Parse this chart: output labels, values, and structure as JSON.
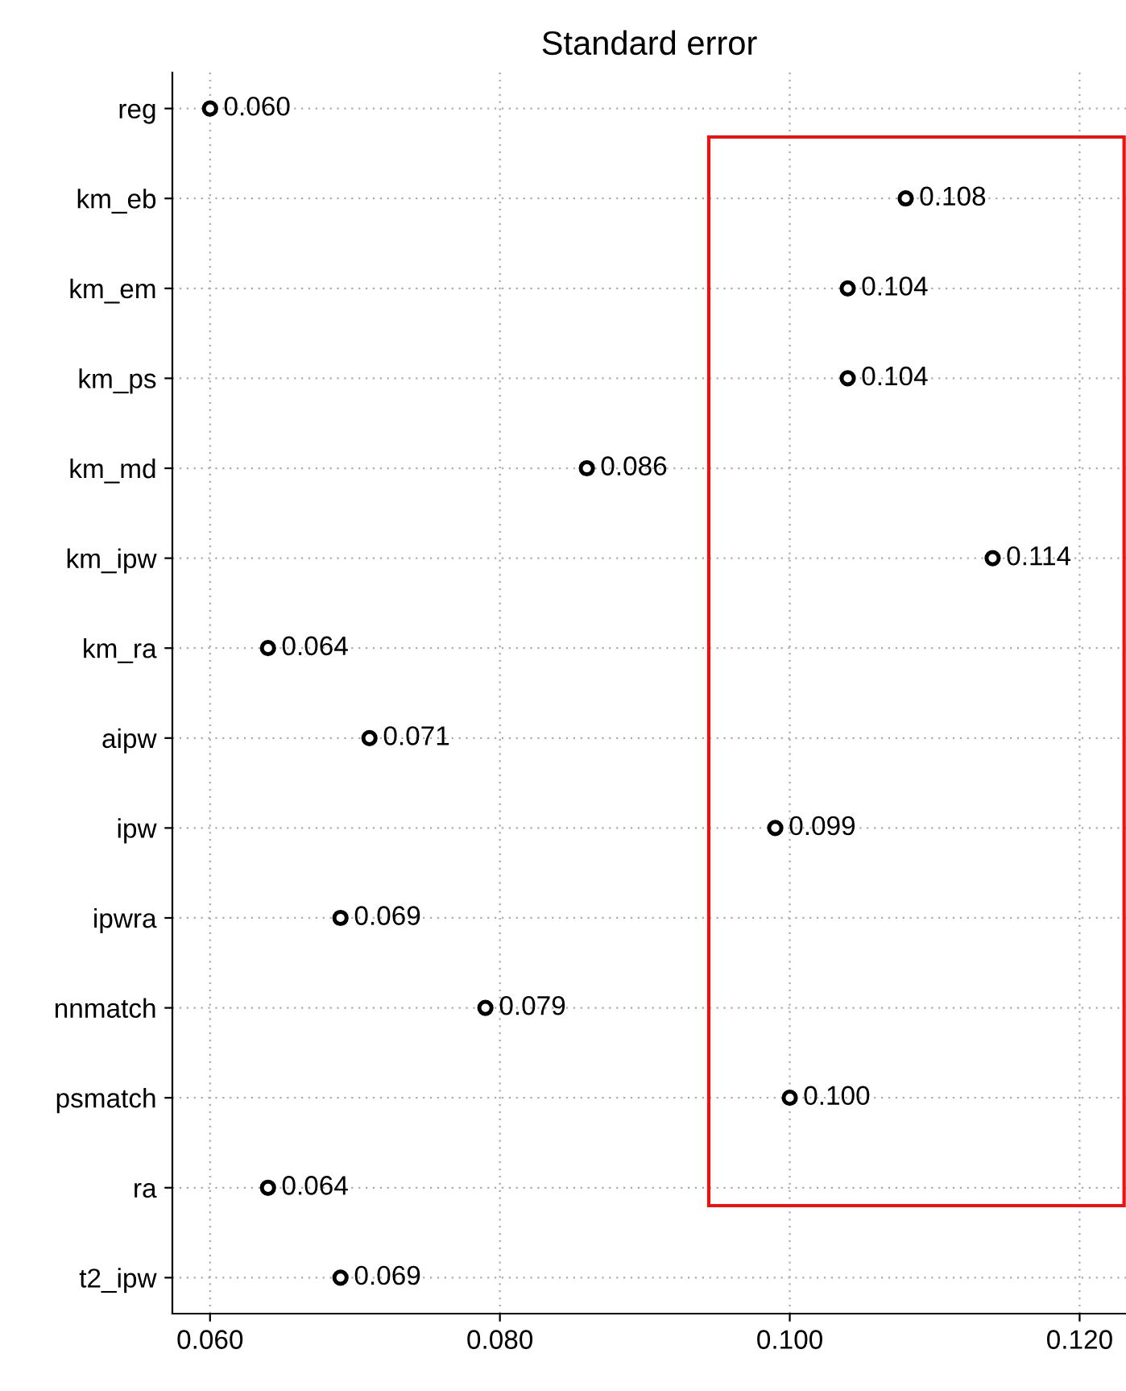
{
  "chart_data": {
    "type": "scatter",
    "orientation": "horizontal",
    "title": "Standard error",
    "categories": [
      "reg",
      "km_eb",
      "km_em",
      "km_ps",
      "km_md",
      "km_ipw",
      "km_ra",
      "aipw",
      "ipw",
      "ipwra",
      "nnmatch",
      "psmatch",
      "ra",
      "t2_ipw"
    ],
    "values": [
      0.06,
      0.108,
      0.104,
      0.104,
      0.086,
      0.114,
      0.064,
      0.071,
      0.099,
      0.069,
      0.079,
      0.1,
      0.064,
      0.069
    ],
    "value_labels": [
      "0.060",
      "0.108",
      "0.104",
      "0.104",
      "0.086",
      "0.114",
      "0.064",
      "0.071",
      "0.099",
      "0.069",
      "0.079",
      "0.100",
      "0.064",
      "0.069"
    ],
    "color": "#000000",
    "marker": "circle",
    "xlim": [
      0.0574,
      0.1232
    ],
    "xticks": [
      {
        "value": 0.06,
        "label": "0.060"
      },
      {
        "value": 0.08,
        "label": "0.080"
      },
      {
        "value": 0.1,
        "label": "0.100"
      },
      {
        "value": 0.12,
        "label": "0.120"
      }
    ],
    "grid": true
  }
}
